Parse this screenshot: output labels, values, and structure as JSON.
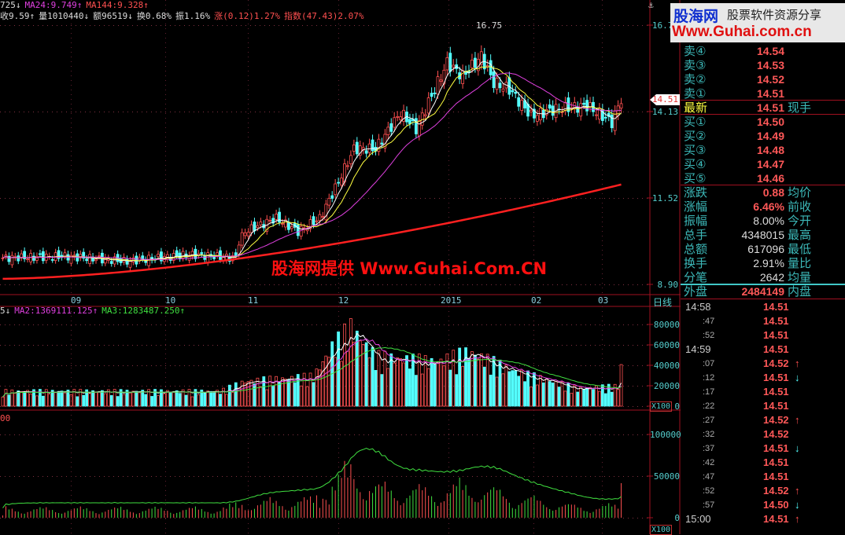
{
  "header": {
    "line1": [
      {
        "t": "725↓",
        "c": "w"
      },
      {
        "t": "MA24:9.749↑",
        "c": "m"
      },
      {
        "t": "MA144:9.328↑",
        "c": "r"
      }
    ],
    "line2": [
      {
        "t": "收9.59↑",
        "c": "w"
      },
      {
        "t": "量1010440↓",
        "c": "w"
      },
      {
        "t": "额96519↓",
        "c": "w"
      },
      {
        "t": "换0.68%",
        "c": "w"
      },
      {
        "t": "振1.16%",
        "c": "w"
      },
      {
        "t": "涨(0.12)1.27%",
        "c": "r"
      },
      {
        "t": "指数(47.43)2.07%",
        "c": "r"
      }
    ]
  },
  "price_axis": {
    "labels": [
      "16.75",
      "14.13",
      "11.52",
      "8.90"
    ],
    "current": "14.51",
    "peak_label": "16.75"
  },
  "date_axis": {
    "labels": [
      "09",
      "10",
      "11",
      "12",
      "2015",
      "02",
      "03"
    ],
    "period": "日线"
  },
  "volume_panel": {
    "legend": [
      {
        "t": "5↓",
        "c": "w"
      },
      {
        "t": "MA2:1369111.125↑",
        "c": "m"
      },
      {
        "t": "MA3:1283487.250↑",
        "c": "g"
      }
    ],
    "axis": [
      "80000",
      "60000",
      "40000",
      "20000",
      "0"
    ],
    "unit": "X100"
  },
  "third_panel": {
    "legend": "00",
    "axis": [
      "100000",
      "50000",
      "0"
    ],
    "unit": "X100"
  },
  "watermark": "股海网提供 Www.Guhai.Com.CN",
  "logo": {
    "cn": "股海网",
    "tag": "股票软件资源分享",
    "url": "Www.Guhai.com.cn"
  },
  "quote": {
    "asks": [
      {
        "label": "卖④",
        "price": "14.54"
      },
      {
        "label": "卖③",
        "price": "14.53"
      },
      {
        "label": "卖②",
        "price": "14.52"
      },
      {
        "label": "卖①",
        "price": "14.51"
      }
    ],
    "latest": {
      "label": "最新",
      "price": "14.51",
      "label2": "现手"
    },
    "bids": [
      {
        "label": "买①",
        "price": "14.50"
      },
      {
        "label": "买②",
        "price": "14.49"
      },
      {
        "label": "买③",
        "price": "14.48"
      },
      {
        "label": "买④",
        "price": "14.47"
      },
      {
        "label": "买⑤",
        "price": "14.46"
      }
    ],
    "stats": [
      {
        "label": "涨跌",
        "value": "0.88",
        "label2": "均价",
        "red": true
      },
      {
        "label": "涨幅",
        "value": "6.46%",
        "label2": "前收",
        "red": true
      },
      {
        "label": "振幅",
        "value": "8.00%",
        "label2": "今开"
      },
      {
        "label": "总手",
        "value": "4348015",
        "label2": "最高"
      },
      {
        "label": "总额",
        "value": "617096",
        "label2": "最低"
      },
      {
        "label": "换手",
        "value": "2.91%",
        "label2": "量比"
      },
      {
        "label": "分笔",
        "value": "2642",
        "label2": "均量"
      },
      {
        "label": "外盘",
        "value": "2484149",
        "label2": "内盘",
        "red": true
      }
    ]
  },
  "ticks": [
    {
      "time": "14:58",
      "price": "14.51",
      "dir": ""
    },
    {
      "time": ":47",
      "price": "14.51",
      "dir": ""
    },
    {
      "time": ":52",
      "price": "14.51",
      "dir": ""
    },
    {
      "time": "14:59",
      "price": "14.51",
      "dir": ""
    },
    {
      "time": ":07",
      "price": "14.52",
      "dir": "up"
    },
    {
      "time": ":12",
      "price": "14.51",
      "dir": "down"
    },
    {
      "time": ":17",
      "price": "14.51",
      "dir": ""
    },
    {
      "time": ":22",
      "price": "14.51",
      "dir": ""
    },
    {
      "time": ":27",
      "price": "14.52",
      "dir": "up"
    },
    {
      "time": ":32",
      "price": "14.52",
      "dir": ""
    },
    {
      "time": ":37",
      "price": "14.51",
      "dir": "down"
    },
    {
      "time": ":42",
      "price": "14.51",
      "dir": ""
    },
    {
      "time": ":47",
      "price": "14.51",
      "dir": ""
    },
    {
      "time": ":52",
      "price": "14.52",
      "dir": "up"
    },
    {
      "time": ":57",
      "price": "14.50",
      "dir": "down"
    },
    {
      "time": "15:00",
      "price": "14.51",
      "dir": "up"
    }
  ],
  "colors": {
    "up": "#ff5050",
    "down": "#54ffff",
    "grid": "#a01020",
    "axis_text": "#5cc"
  },
  "chart_data": {
    "type": "candlestick",
    "price_keypoints": [
      [
        0,
        9.7
      ],
      [
        20,
        9.75
      ],
      [
        40,
        9.6
      ],
      [
        60,
        9.8
      ],
      [
        75,
        9.7
      ],
      [
        72,
        9.7
      ],
      [
        74,
        9.9
      ],
      [
        78,
        10.5
      ],
      [
        88,
        10.9
      ],
      [
        95,
        10.5
      ],
      [
        102,
        10.9
      ],
      [
        108,
        12.0
      ],
      [
        113,
        13.0
      ],
      [
        120,
        13.0
      ],
      [
        128,
        14.1
      ],
      [
        133,
        13.6
      ],
      [
        138,
        14.6
      ],
      [
        143,
        15.6
      ],
      [
        148,
        15.2
      ],
      [
        154,
        15.8
      ],
      [
        158,
        15.0
      ],
      [
        163,
        14.8
      ],
      [
        170,
        14.0
      ],
      [
        178,
        14.2
      ],
      [
        188,
        14.3
      ],
      [
        196,
        13.8
      ],
      [
        199,
        14.51
      ]
    ],
    "ma144": [
      9.07,
      11.92
    ],
    "volume_keypoints": [
      [
        0,
        15000
      ],
      [
        70,
        15000
      ],
      [
        78,
        25000
      ],
      [
        100,
        30000
      ],
      [
        106,
        60000
      ],
      [
        112,
        80000
      ],
      [
        120,
        50000
      ],
      [
        140,
        45000
      ],
      [
        150,
        55000
      ],
      [
        165,
        35000
      ],
      [
        185,
        18000
      ],
      [
        198,
        20000
      ],
      [
        199,
        40000
      ]
    ]
  }
}
